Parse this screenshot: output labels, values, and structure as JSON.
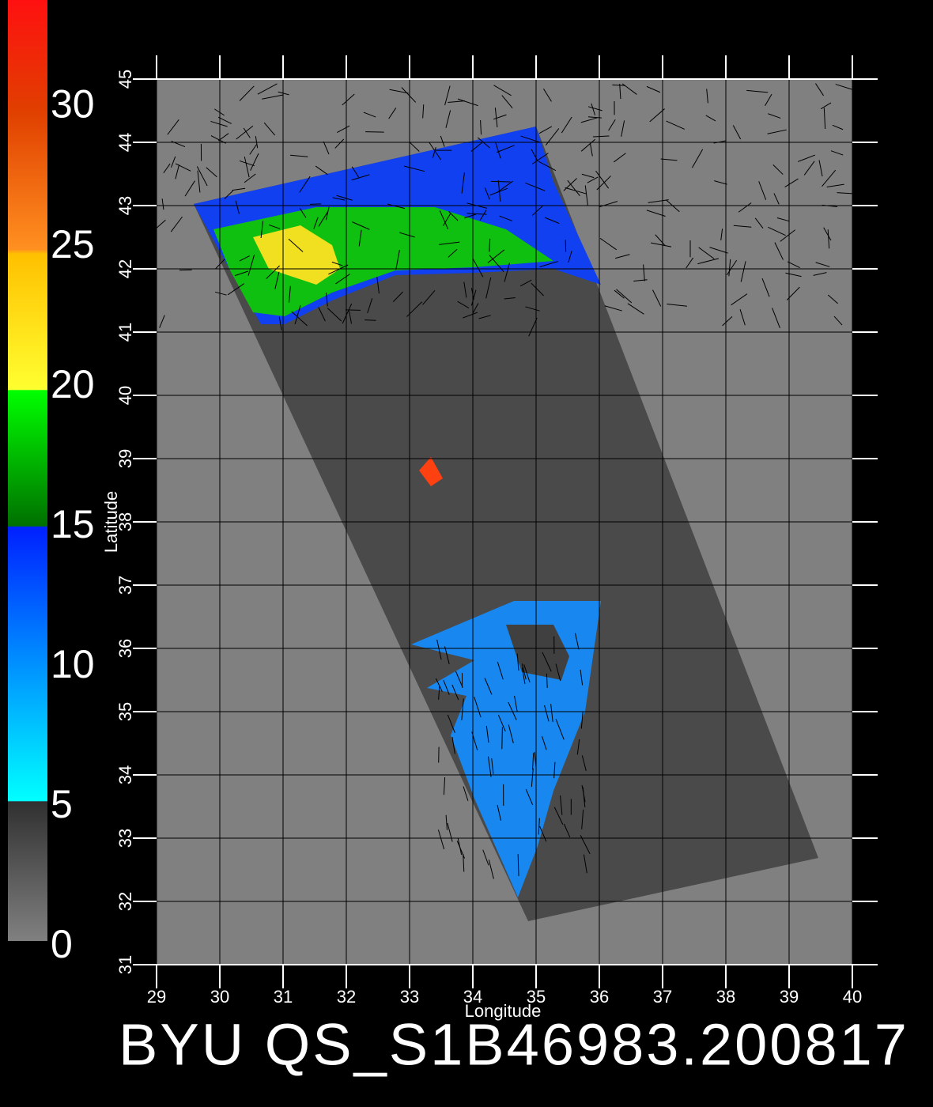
{
  "chart_data": {
    "type": "map",
    "title": "BYU QS_S1B46983.200817",
    "xlabel": "Longitude",
    "ylabel": "Latitude",
    "xlim": [
      29,
      40
    ],
    "xticks": [
      29,
      30,
      31,
      32,
      33,
      34,
      35,
      36,
      37,
      38,
      39,
      40
    ],
    "ylim": [
      31,
      45
    ],
    "yticks": [
      31,
      32,
      33,
      34,
      35,
      36,
      37,
      38,
      39,
      40,
      41,
      42,
      43,
      44,
      45
    ],
    "grid": true,
    "colorbar": {
      "lim": [
        0,
        33.6
      ],
      "ticks": [
        0,
        5,
        10,
        15,
        20,
        25,
        30
      ]
    }
  }
}
